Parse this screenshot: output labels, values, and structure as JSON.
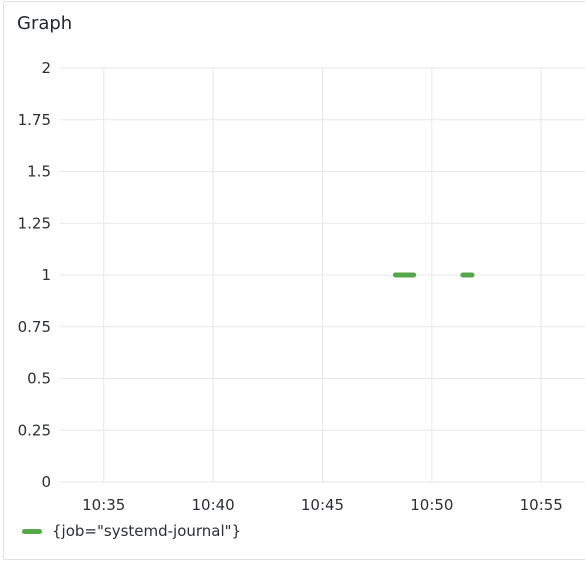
{
  "panel": {
    "title": "Graph"
  },
  "colors": {
    "series": "#56a64b",
    "grid": "#e6e7ea",
    "border": "#dfe1e5"
  },
  "chart_data": {
    "type": "line",
    "title": "Graph",
    "xlabel": "",
    "ylabel": "",
    "x_ticks": [
      "10:35",
      "10:40",
      "10:45",
      "10:50",
      "10:55"
    ],
    "xlim": [
      "10:33",
      "10:57"
    ],
    "y_ticks": [
      "0",
      "0.25",
      "0.5",
      "0.75",
      "1",
      "1.25",
      "1.5",
      "1.75",
      "2"
    ],
    "ylim": [
      0,
      2
    ],
    "grid": true,
    "legend_position": "bottom-left",
    "series": [
      {
        "name": "{job=\"systemd-journal\"}",
        "segments": [
          [
            [
              "10:48:20",
              1
            ],
            [
              "10:49:10",
              1
            ]
          ],
          [
            [
              "10:51:25",
              1
            ],
            [
              "10:51:50",
              1
            ]
          ]
        ]
      }
    ]
  },
  "legend": {
    "items": [
      {
        "label": "{job=\"systemd-journal\"}"
      }
    ]
  }
}
